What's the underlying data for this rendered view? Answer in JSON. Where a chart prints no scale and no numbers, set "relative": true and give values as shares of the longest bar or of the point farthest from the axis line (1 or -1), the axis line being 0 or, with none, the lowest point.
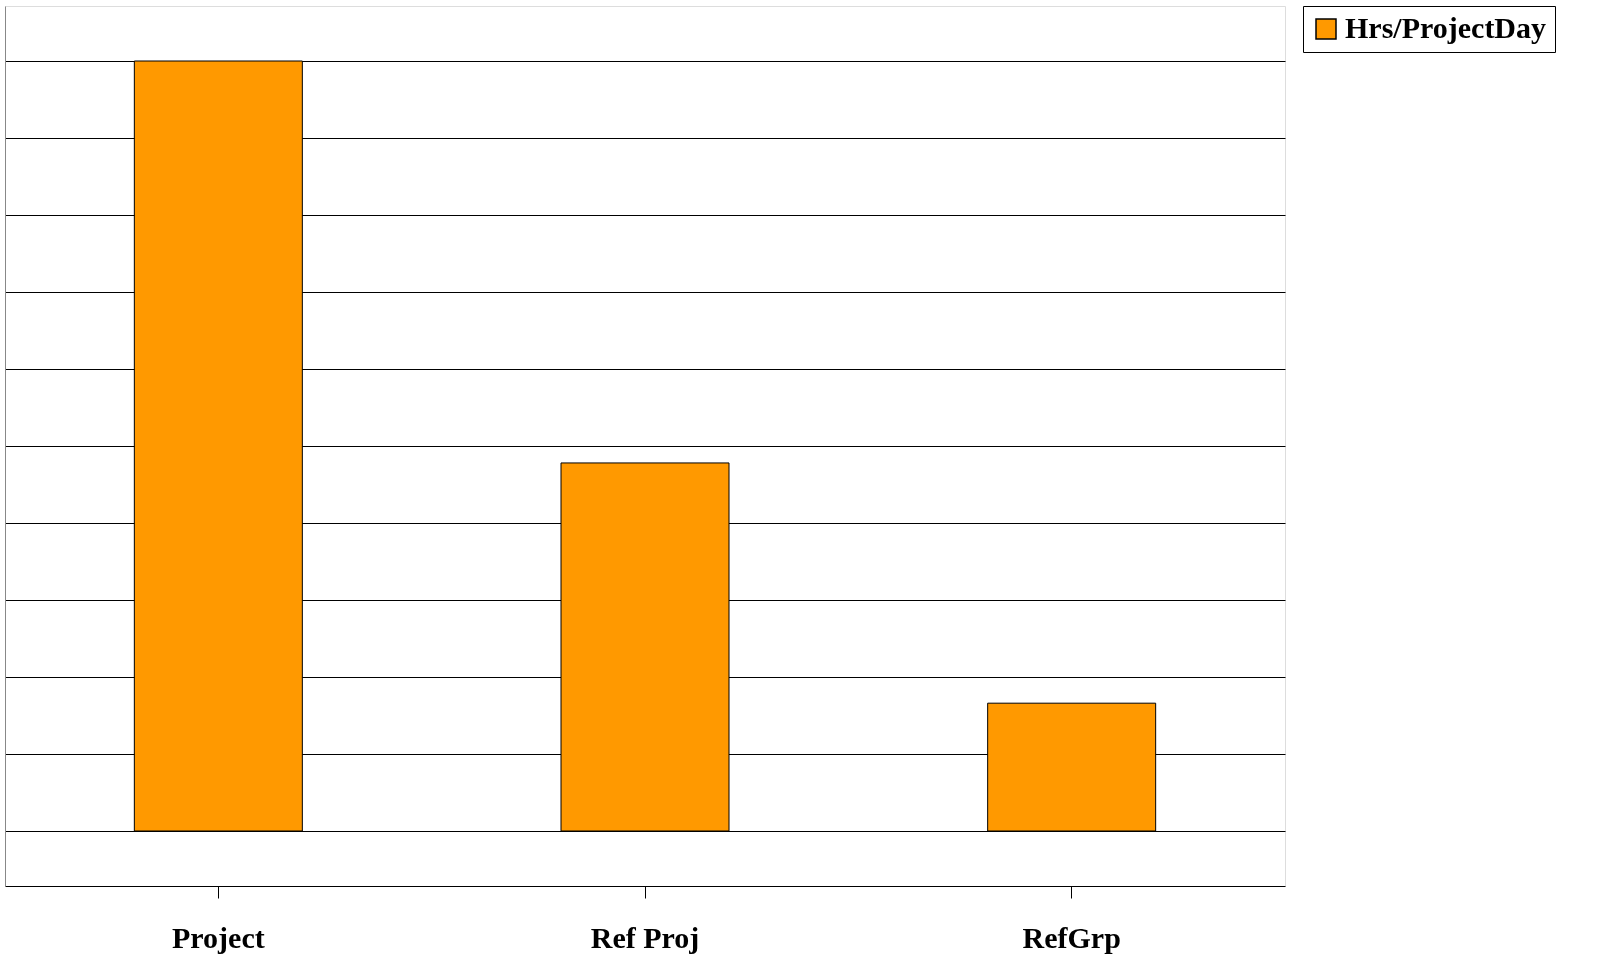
{
  "chart_data": {
    "type": "bar",
    "relative": true,
    "categories": [
      "Project",
      "Ref Proj",
      "RefGrp"
    ],
    "series": [
      {
        "name": "Hrs/ProjectDay",
        "color": "#ff9900",
        "values": [
          1,
          0.478,
          0.166
        ]
      }
    ],
    "grid": "y",
    "legend": "right"
  }
}
